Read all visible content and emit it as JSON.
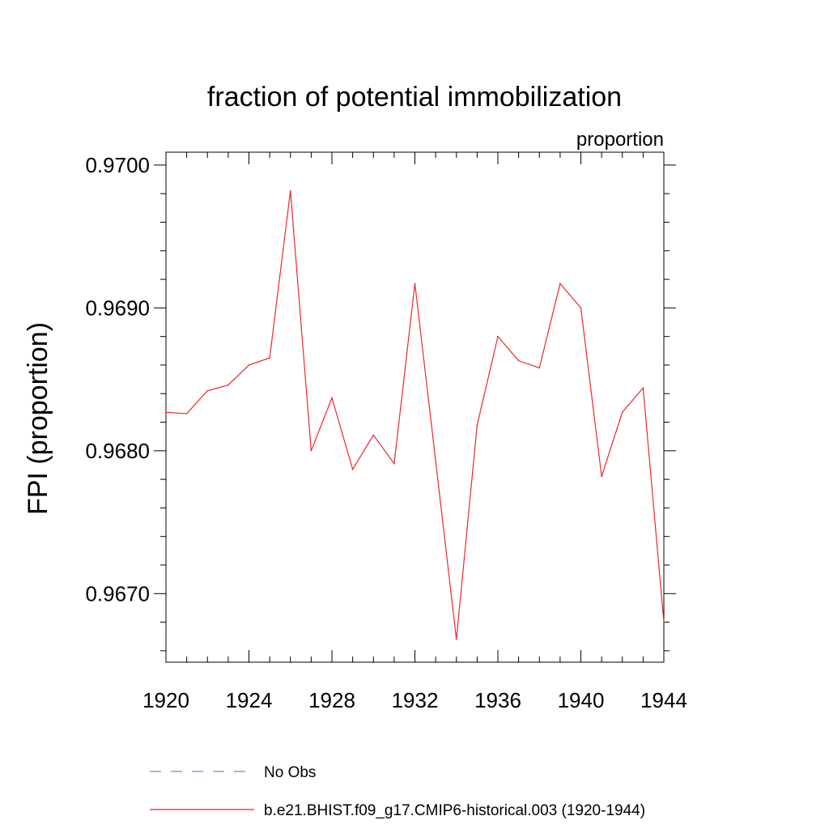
{
  "chart_data": {
    "type": "line",
    "title": "fraction of potential immobilization",
    "units_label": "proportion",
    "ylabel": "FPI  (proportion)",
    "xlabel": "",
    "xlim": [
      1920,
      1944
    ],
    "ylim": [
      0.96652,
      0.97009
    ],
    "x_ticks": [
      1920,
      1924,
      1928,
      1932,
      1936,
      1940,
      1944
    ],
    "x_tick_labels": [
      "1920",
      "1924",
      "1928",
      "1932",
      "1936",
      "1940",
      "1944"
    ],
    "y_ticks": [
      0.967,
      0.968,
      0.969,
      0.97
    ],
    "y_tick_labels": [
      "0.9670",
      "0.9680",
      "0.9690",
      "0.9700"
    ],
    "y_minor_step": 0.0002,
    "grid": false,
    "legend_position": "bottom",
    "series": [
      {
        "name": "No Obs",
        "color": "#8a82c8",
        "dash": "dashed",
        "x": [],
        "y": []
      },
      {
        "name": "b.e21.BHIST.f09_g17.CMIP6-historical.003 (1920-1944)",
        "color": "#e8282a",
        "dash": "solid",
        "x": [
          1920,
          1921,
          1922,
          1923,
          1924,
          1925,
          1926,
          1927,
          1928,
          1929,
          1930,
          1931,
          1932,
          1933,
          1934,
          1935,
          1936,
          1937,
          1938,
          1939,
          1940,
          1941,
          1942,
          1943,
          1944
        ],
        "y": [
          0.96827,
          0.96826,
          0.96842,
          0.96846,
          0.9686,
          0.96865,
          0.96982,
          0.968,
          0.96837,
          0.96787,
          0.96811,
          0.96791,
          0.96917,
          0.96793,
          0.96668,
          0.96818,
          0.9688,
          0.96863,
          0.96858,
          0.96917,
          0.969,
          0.96782,
          0.96827,
          0.96844,
          0.9668
        ]
      }
    ]
  }
}
